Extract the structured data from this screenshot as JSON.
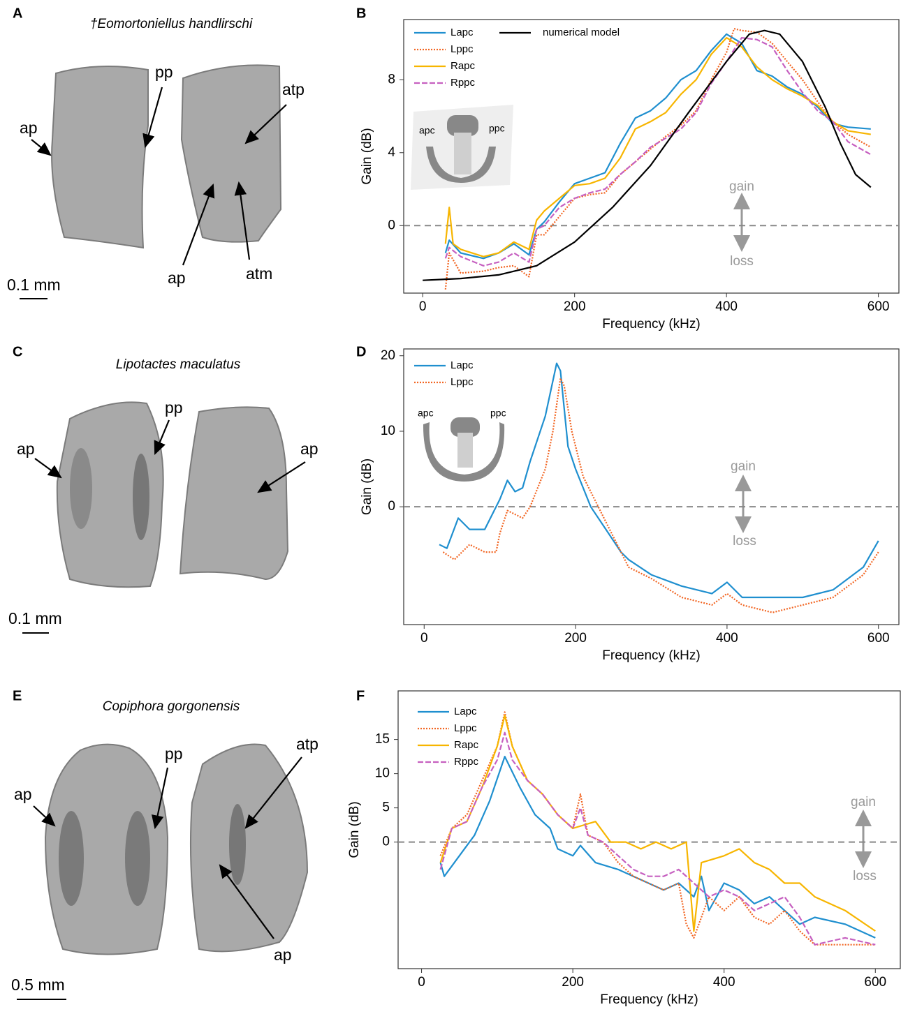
{
  "specimens": [
    {
      "panel": "A",
      "title": "†Eomortoniellus handlirschi",
      "labels": [
        "ap",
        "pp",
        "atp",
        "ap",
        "atm"
      ],
      "scale": "0.1 mm"
    },
    {
      "panel": "C",
      "title": "Lipotactes maculatus",
      "labels": [
        "ap",
        "pp",
        "ap"
      ],
      "scale": "0.1 mm"
    },
    {
      "panel": "E",
      "title": "Copiphora gorgonensis",
      "labels": [
        "ap",
        "pp",
        "atp",
        "ap"
      ],
      "scale": "0.5 mm"
    }
  ],
  "chart_data": [
    {
      "type": "line",
      "panel": "B",
      "x_label": "Frequency (kHz)",
      "y_label": "Gain (dB)",
      "xlim": [
        -25,
        627
      ],
      "ylim": [
        -3.7,
        11.3
      ],
      "xticks": [
        0,
        200,
        400,
        600
      ],
      "yticks": [
        0,
        4,
        8
      ],
      "reference_line": 0,
      "annotations": [
        "gain",
        "loss"
      ],
      "inset_labels": [
        "apc",
        "ppc"
      ],
      "series": [
        {
          "name": "Lapc",
          "color": "#1f8fcf",
          "dash": "solid",
          "x": [
            30,
            35,
            50,
            80,
            100,
            120,
            140,
            150,
            160,
            180,
            200,
            220,
            240,
            260,
            280,
            300,
            320,
            340,
            360,
            380,
            400,
            420,
            440,
            460,
            480,
            500,
            520,
            540,
            560,
            590
          ],
          "values": [
            -1.5,
            -0.8,
            -1.5,
            -1.8,
            -1.5,
            -1.0,
            -1.6,
            -0.2,
            0.2,
            1.3,
            2.3,
            2.6,
            2.9,
            4.5,
            5.9,
            6.3,
            7.0,
            8.0,
            8.5,
            9.6,
            10.5,
            10.0,
            8.5,
            8.2,
            7.6,
            7.2,
            6.5,
            5.6,
            5.4,
            5.3
          ]
        },
        {
          "name": "Lppc",
          "color": "#f26522",
          "dash": "dotted",
          "x": [
            30,
            35,
            50,
            80,
            100,
            120,
            140,
            150,
            160,
            180,
            200,
            220,
            240,
            260,
            280,
            300,
            320,
            340,
            360,
            380,
            400,
            410,
            420,
            440,
            460,
            480,
            500,
            520,
            540,
            560,
            590
          ],
          "values": [
            -3.5,
            -1.5,
            -2.6,
            -2.5,
            -2.3,
            -2.2,
            -2.8,
            -0.5,
            -0.5,
            0.5,
            1.5,
            1.7,
            1.8,
            2.8,
            3.5,
            4.2,
            4.9,
            5.5,
            6.3,
            8.0,
            9.5,
            10.8,
            10.7,
            10.6,
            10.0,
            9.0,
            8.0,
            6.8,
            5.7,
            5.0,
            4.3
          ]
        },
        {
          "name": "Rapc",
          "color": "#f7b500",
          "dash": "solid",
          "x": [
            30,
            35,
            40,
            50,
            80,
            100,
            120,
            140,
            150,
            160,
            180,
            200,
            220,
            240,
            260,
            280,
            300,
            320,
            340,
            360,
            380,
            400,
            420,
            440,
            460,
            480,
            500,
            520,
            540,
            560,
            590
          ],
          "values": [
            -1.0,
            1.0,
            -1.0,
            -1.3,
            -1.7,
            -1.5,
            -0.9,
            -1.3,
            0.3,
            0.8,
            1.5,
            2.2,
            2.3,
            2.6,
            3.7,
            5.3,
            5.7,
            6.2,
            7.2,
            8.0,
            9.4,
            10.3,
            9.8,
            8.7,
            8.0,
            7.5,
            7.1,
            6.6,
            5.7,
            5.2,
            5.0
          ]
        },
        {
          "name": "Rppc",
          "color": "#c660c0",
          "dash": "dashed",
          "x": [
            30,
            35,
            50,
            80,
            100,
            120,
            140,
            150,
            160,
            180,
            200,
            220,
            240,
            260,
            280,
            300,
            320,
            340,
            360,
            380,
            400,
            420,
            440,
            460,
            480,
            500,
            520,
            540,
            560,
            590
          ],
          "values": [
            -1.8,
            -1.2,
            -1.7,
            -2.2,
            -2.0,
            -1.5,
            -2.0,
            -0.2,
            0.0,
            1.0,
            1.5,
            1.8,
            2.0,
            2.8,
            3.5,
            4.3,
            4.8,
            5.3,
            6.2,
            7.8,
            9.0,
            10.3,
            10.2,
            9.8,
            8.5,
            7.3,
            6.3,
            5.7,
            4.6,
            3.9
          ]
        },
        {
          "name": "numerical model",
          "color": "#000000",
          "dash": "solid",
          "x": [
            0,
            50,
            100,
            150,
            200,
            250,
            300,
            350,
            400,
            430,
            450,
            470,
            500,
            530,
            550,
            570,
            590
          ],
          "values": [
            -3.0,
            -2.9,
            -2.7,
            -2.2,
            -0.9,
            1.0,
            3.3,
            6.2,
            9.0,
            10.5,
            10.7,
            10.5,
            9.0,
            6.5,
            4.5,
            2.8,
            2.1
          ]
        }
      ]
    },
    {
      "type": "line",
      "panel": "D",
      "x_label": "Frequency (kHz)",
      "y_label": "Gain (dB)",
      "xlim": [
        -27,
        627
      ],
      "ylim": [
        -15.6,
        20.9
      ],
      "xticks": [
        0,
        200,
        400,
        600
      ],
      "yticks": [
        0,
        10,
        20
      ],
      "reference_line": 0,
      "annotations": [
        "gain",
        "loss"
      ],
      "inset_labels": [
        "apc",
        "ppc"
      ],
      "series": [
        {
          "name": "Lapc",
          "color": "#1f8fcf",
          "dash": "solid",
          "x": [
            20,
            30,
            45,
            60,
            80,
            100,
            110,
            120,
            130,
            140,
            160,
            175,
            180,
            190,
            200,
            220,
            240,
            260,
            270,
            300,
            340,
            380,
            400,
            420,
            460,
            500,
            540,
            580,
            600
          ],
          "values": [
            -5,
            -5.5,
            -1.5,
            -3,
            -3,
            1,
            3.5,
            2,
            2.5,
            6,
            12,
            19,
            18,
            8,
            5,
            0,
            -3,
            -6,
            -7,
            -9,
            -10.5,
            -11.5,
            -10,
            -12,
            -12,
            -12,
            -11,
            -8,
            -4.5
          ]
        },
        {
          "name": "Lppc",
          "color": "#f26522",
          "dash": "dotted",
          "x": [
            25,
            40,
            60,
            80,
            95,
            100,
            110,
            120,
            130,
            140,
            160,
            170,
            180,
            185,
            195,
            210,
            230,
            250,
            270,
            300,
            340,
            380,
            400,
            420,
            460,
            500,
            540,
            580,
            600
          ],
          "values": [
            -6,
            -7,
            -5,
            -6,
            -6,
            -3.5,
            -0.5,
            -1,
            -1.5,
            0,
            5,
            10,
            17,
            16,
            10,
            4,
            0,
            -4,
            -8,
            -9.5,
            -12,
            -13,
            -11.5,
            -13,
            -14,
            -13,
            -12,
            -9,
            -6
          ]
        }
      ]
    },
    {
      "type": "line",
      "panel": "F",
      "x_label": "Frequency (kHz)",
      "y_label": "Gain (dB)",
      "xlim": [
        -31,
        633
      ],
      "ylim": [
        -18.5,
        22.1
      ],
      "xticks": [
        0,
        200,
        400,
        600
      ],
      "yticks": [
        0,
        5,
        10,
        15
      ],
      "reference_line": 0,
      "annotations": [
        "gain",
        "loss"
      ],
      "series": [
        {
          "name": "Lapc",
          "color": "#1f8fcf",
          "dash": "solid",
          "x": [
            25,
            30,
            50,
            70,
            90,
            110,
            130,
            150,
            170,
            180,
            200,
            210,
            230,
            260,
            280,
            300,
            320,
            340,
            360,
            370,
            380,
            400,
            420,
            440,
            460,
            480,
            500,
            520,
            560,
            600
          ],
          "values": [
            -3,
            -5,
            -2,
            1,
            6,
            12.5,
            8,
            4,
            2,
            -1,
            -2,
            -0.5,
            -3,
            -4,
            -5,
            -6,
            -7,
            -6,
            -8,
            -5,
            -10,
            -6,
            -7,
            -9,
            -8,
            -10,
            -12,
            -11,
            -12,
            -14
          ]
        },
        {
          "name": "Lppc",
          "color": "#f26522",
          "dash": "dotted",
          "x": [
            25,
            40,
            60,
            80,
            100,
            110,
            120,
            140,
            160,
            180,
            200,
            210,
            220,
            240,
            260,
            280,
            300,
            320,
            340,
            350,
            360,
            380,
            400,
            420,
            440,
            460,
            480,
            500,
            520,
            560,
            600
          ],
          "values": [
            -2,
            2,
            4,
            9,
            14,
            19,
            14,
            9,
            7,
            4,
            2,
            7,
            1,
            0,
            -3,
            -5,
            -6,
            -7,
            -6,
            -12,
            -14,
            -8,
            -10,
            -8,
            -11,
            -12,
            -10,
            -13,
            -15,
            -15,
            -15
          ]
        },
        {
          "name": "Rapc",
          "color": "#f7b500",
          "dash": "solid",
          "x": [
            25,
            40,
            60,
            80,
            100,
            110,
            120,
            140,
            160,
            180,
            200,
            230,
            250,
            270,
            290,
            310,
            330,
            350,
            360,
            370,
            400,
            420,
            440,
            460,
            480,
            500,
            520,
            560,
            600
          ],
          "values": [
            -3,
            2,
            3,
            8,
            14,
            18.5,
            14,
            9,
            7,
            4,
            2,
            3,
            0,
            0,
            -1,
            0,
            -1,
            0,
            -13,
            -3,
            -2,
            -1,
            -3,
            -4,
            -6,
            -6,
            -8,
            -10,
            -13
          ]
        },
        {
          "name": "Rppc",
          "color": "#c660c0",
          "dash": "dashed",
          "x": [
            25,
            40,
            60,
            80,
            100,
            110,
            120,
            140,
            160,
            180,
            200,
            210,
            220,
            240,
            260,
            280,
            300,
            320,
            340,
            360,
            380,
            400,
            420,
            440,
            460,
            480,
            500,
            520,
            560,
            600
          ],
          "values": [
            -4,
            2,
            3,
            8,
            12,
            16,
            12,
            9,
            7,
            4,
            2,
            5,
            1,
            0,
            -2,
            -4,
            -5,
            -5,
            -4,
            -6,
            -8,
            -7,
            -8,
            -10,
            -9,
            -8,
            -11,
            -15,
            -14,
            -15
          ]
        }
      ]
    }
  ]
}
